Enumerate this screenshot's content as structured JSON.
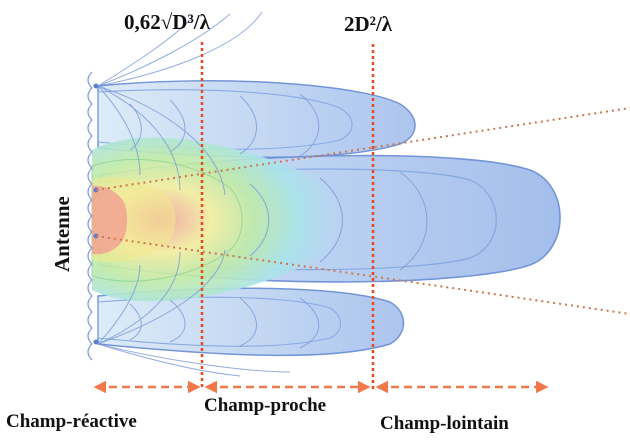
{
  "diagram": {
    "antenna_label": "Antenne",
    "boundaries": [
      {
        "formula": "0,62√D³/λ"
      },
      {
        "formula": "2D²/λ"
      }
    ],
    "regions": [
      {
        "label": "Champ-réactive"
      },
      {
        "label": "Champ-proche"
      },
      {
        "label": "Champ-lointain"
      }
    ],
    "colors": {
      "boundary_line": "#e8491d",
      "region_arrow": "#f0784a",
      "beam_edge": "#6d8fd6",
      "beam_fill": "#bcd0f3",
      "diverging_line": "#c9784e"
    }
  }
}
